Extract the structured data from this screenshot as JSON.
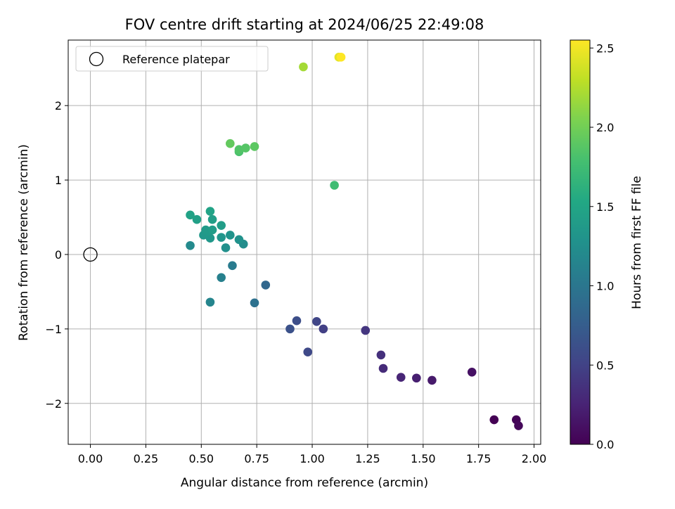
{
  "chart_data": {
    "type": "scatter",
    "title": "FOV centre drift starting at 2024/06/25 22:49:08",
    "xlabel": "Angular distance from reference (arcmin)",
    "ylabel": "Rotation from reference (arcmin)",
    "xlim": [
      -0.1,
      2.03
    ],
    "ylim": [
      -2.55,
      2.88
    ],
    "x_ticks": [
      0.0,
      0.25,
      0.5,
      0.75,
      1.0,
      1.25,
      1.5,
      1.75,
      2.0
    ],
    "x_tick_labels": [
      "0.00",
      "0.25",
      "0.50",
      "0.75",
      "1.00",
      "1.25",
      "1.50",
      "1.75",
      "2.00"
    ],
    "y_ticks": [
      -2,
      -1,
      0,
      1,
      2
    ],
    "y_tick_labels": [
      "−2",
      "−1",
      "0",
      "1",
      "2"
    ],
    "grid": true,
    "legend": {
      "placement": "upper left",
      "entries": [
        {
          "label": "Reference platepar",
          "marker": "open-circle",
          "x": 0.0,
          "y": 0.0
        }
      ]
    },
    "colorbar": {
      "label": "Hours from first FF file",
      "colormap": "viridis",
      "range": [
        0.0,
        2.55
      ],
      "ticks": [
        0.0,
        0.5,
        1.0,
        1.5,
        2.0,
        2.5
      ],
      "tick_labels": [
        "0.0",
        "0.5",
        "1.0",
        "1.5",
        "2.0",
        "2.5"
      ]
    },
    "series": [
      {
        "color_variable": "hours",
        "points": [
          {
            "x": 1.82,
            "y": -2.22,
            "c": 0.0
          },
          {
            "x": 1.92,
            "y": -2.22,
            "c": 0.02
          },
          {
            "x": 1.93,
            "y": -2.3,
            "c": 0.05
          },
          {
            "x": 1.72,
            "y": -1.58,
            "c": 0.12
          },
          {
            "x": 1.54,
            "y": -1.69,
            "c": 0.18
          },
          {
            "x": 1.47,
            "y": -1.66,
            "c": 0.22
          },
          {
            "x": 1.4,
            "y": -1.65,
            "c": 0.27
          },
          {
            "x": 1.32,
            "y": -1.53,
            "c": 0.31
          },
          {
            "x": 1.31,
            "y": -1.35,
            "c": 0.35
          },
          {
            "x": 1.24,
            "y": -1.02,
            "c": 0.4
          },
          {
            "x": 1.05,
            "y": -1.0,
            "c": 0.48
          },
          {
            "x": 1.02,
            "y": -0.9,
            "c": 0.53
          },
          {
            "x": 0.98,
            "y": -1.31,
            "c": 0.56
          },
          {
            "x": 0.93,
            "y": -0.89,
            "c": 0.6
          },
          {
            "x": 0.9,
            "y": -1.0,
            "c": 0.63
          },
          {
            "x": 0.79,
            "y": -0.41,
            "c": 0.85
          },
          {
            "x": 0.74,
            "y": -0.65,
            "c": 0.95
          },
          {
            "x": 0.64,
            "y": -0.15,
            "c": 1.05
          },
          {
            "x": 0.59,
            "y": -0.31,
            "c": 1.1
          },
          {
            "x": 0.54,
            "y": -0.64,
            "c": 1.15
          },
          {
            "x": 0.45,
            "y": 0.12,
            "c": 1.2
          },
          {
            "x": 0.69,
            "y": 0.14,
            "c": 1.23
          },
          {
            "x": 0.61,
            "y": 0.09,
            "c": 1.26
          },
          {
            "x": 0.67,
            "y": 0.2,
            "c": 1.29
          },
          {
            "x": 0.63,
            "y": 0.26,
            "c": 1.3
          },
          {
            "x": 0.59,
            "y": 0.23,
            "c": 1.32
          },
          {
            "x": 0.54,
            "y": 0.22,
            "c": 1.34
          },
          {
            "x": 0.51,
            "y": 0.26,
            "c": 1.35
          },
          {
            "x": 0.53,
            "y": 0.31,
            "c": 1.37
          },
          {
            "x": 0.52,
            "y": 0.33,
            "c": 1.38
          },
          {
            "x": 0.55,
            "y": 0.33,
            "c": 1.4
          },
          {
            "x": 0.59,
            "y": 0.39,
            "c": 1.41
          },
          {
            "x": 0.55,
            "y": 0.47,
            "c": 1.42
          },
          {
            "x": 0.48,
            "y": 0.47,
            "c": 1.44
          },
          {
            "x": 0.45,
            "y": 0.53,
            "c": 1.46
          },
          {
            "x": 0.54,
            "y": 0.58,
            "c": 1.48
          },
          {
            "x": 1.1,
            "y": 0.93,
            "c": 1.75
          },
          {
            "x": 0.67,
            "y": 1.38,
            "c": 1.82
          },
          {
            "x": 0.67,
            "y": 1.41,
            "c": 1.85
          },
          {
            "x": 0.7,
            "y": 1.43,
            "c": 1.87
          },
          {
            "x": 0.74,
            "y": 1.45,
            "c": 1.9
          },
          {
            "x": 0.63,
            "y": 1.49,
            "c": 1.93
          },
          {
            "x": 0.96,
            "y": 2.52,
            "c": 2.2
          },
          {
            "x": 1.12,
            "y": 2.65,
            "c": 2.45
          },
          {
            "x": 1.13,
            "y": 2.65,
            "c": 2.55
          }
        ]
      }
    ]
  }
}
